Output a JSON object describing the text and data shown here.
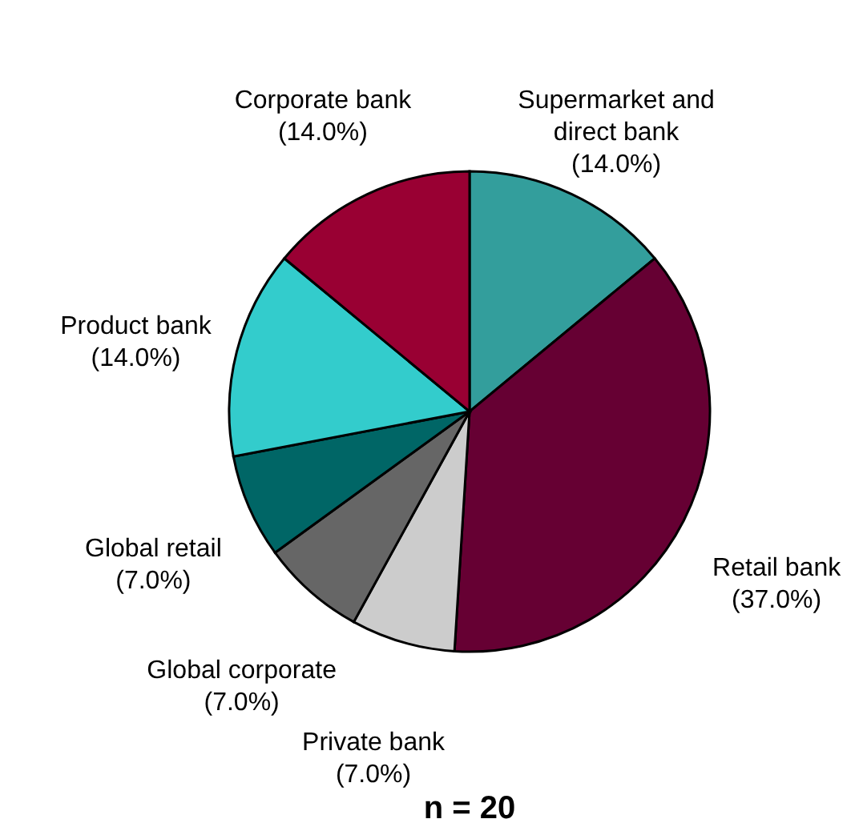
{
  "chart_data": {
    "type": "pie",
    "categories": [
      "Supermarket and\ndirect bank",
      "Retail bank",
      "Private bank",
      "Global corporate",
      "Global retail",
      "Product bank",
      "Corporate bank"
    ],
    "values": [
      14,
      37,
      7,
      7,
      7,
      14,
      14
    ],
    "value_labels": [
      "(14.0%)",
      "(37.0%)",
      "(7.0%)",
      "(7.0%)",
      "(7.0%)",
      "(14.0%)",
      "(14.0%)"
    ],
    "colors": [
      "#339e9c",
      "#660033",
      "#cccccc",
      "#666666",
      "#006666",
      "#33cccc",
      "#990033"
    ],
    "annotations": [
      "n = 20"
    ]
  }
}
